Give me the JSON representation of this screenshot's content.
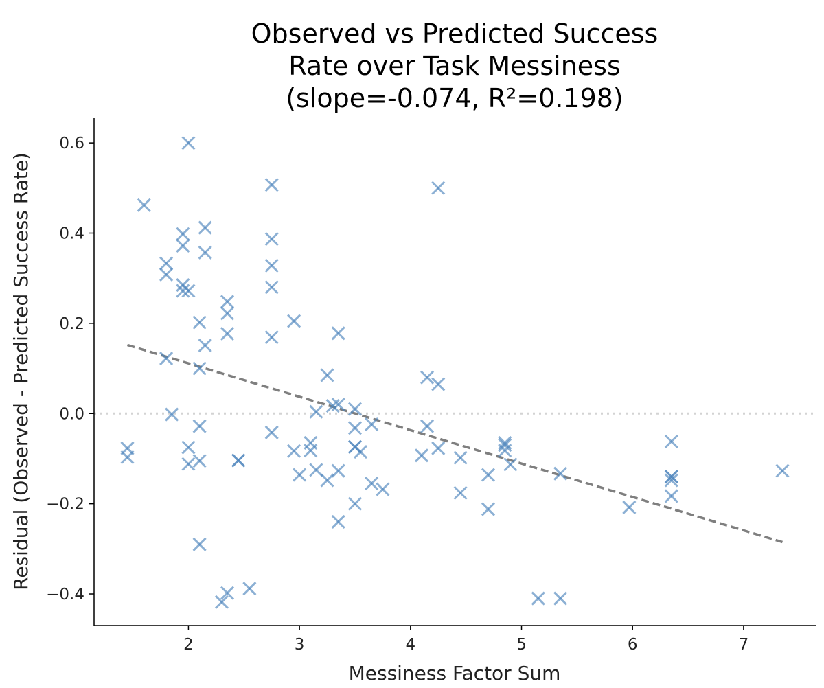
{
  "chart_data": {
    "type": "scatter",
    "title_lines": [
      "Observed vs Predicted Success",
      "Rate over Task Messiness",
      "(slope=-0.074, R²=0.198)"
    ],
    "xlabel": "Messiness Factor Sum",
    "ylabel": "Residual (Observed - Predicted Success Rate)",
    "xlim": [
      1.15,
      7.65
    ],
    "ylim": [
      -0.47,
      0.655
    ],
    "x_ticks": [
      2,
      3,
      4,
      5,
      6,
      7
    ],
    "x_tick_labels": [
      "2",
      "3",
      "4",
      "5",
      "6",
      "7"
    ],
    "y_ticks": [
      -0.4,
      -0.2,
      0.0,
      0.2,
      0.4,
      0.6
    ],
    "y_tick_labels": [
      "−0.4",
      "−0.2",
      "0.0",
      "0.2",
      "0.4",
      "0.6"
    ],
    "grid": false,
    "marker": "x",
    "marker_color": "#4f86bd",
    "trend_line": {
      "x": [
        1.45,
        7.35
      ],
      "y": [
        0.152,
        -0.285
      ],
      "color": "#7f7f7f",
      "style": "dashed"
    },
    "zero_line": {
      "y": 0.0,
      "color": "#d3d3d3",
      "style": "dotted"
    },
    "points": [
      {
        "x": 1.45,
        "y": -0.077
      },
      {
        "x": 1.45,
        "y": -0.097
      },
      {
        "x": 1.6,
        "y": 0.462
      },
      {
        "x": 1.8,
        "y": 0.333
      },
      {
        "x": 1.8,
        "y": 0.308
      },
      {
        "x": 1.8,
        "y": 0.122
      },
      {
        "x": 1.85,
        "y": -0.002
      },
      {
        "x": 1.95,
        "y": 0.398
      },
      {
        "x": 1.95,
        "y": 0.372
      },
      {
        "x": 1.95,
        "y": 0.285
      },
      {
        "x": 1.95,
        "y": 0.272
      },
      {
        "x": 2.0,
        "y": 0.6
      },
      {
        "x": 2.0,
        "y": 0.272
      },
      {
        "x": 2.0,
        "y": -0.075
      },
      {
        "x": 2.0,
        "y": -0.112
      },
      {
        "x": 2.1,
        "y": 0.202
      },
      {
        "x": 2.1,
        "y": 0.1
      },
      {
        "x": 2.1,
        "y": -0.028
      },
      {
        "x": 2.1,
        "y": -0.105
      },
      {
        "x": 2.1,
        "y": -0.29
      },
      {
        "x": 2.15,
        "y": 0.412
      },
      {
        "x": 2.15,
        "y": 0.357
      },
      {
        "x": 2.15,
        "y": 0.151
      },
      {
        "x": 2.3,
        "y": -0.418
      },
      {
        "x": 2.35,
        "y": 0.248
      },
      {
        "x": 2.35,
        "y": 0.222
      },
      {
        "x": 2.35,
        "y": 0.177
      },
      {
        "x": 2.35,
        "y": -0.398
      },
      {
        "x": 2.45,
        "y": -0.104
      },
      {
        "x": 2.45,
        "y": -0.104
      },
      {
        "x": 2.55,
        "y": -0.388
      },
      {
        "x": 2.75,
        "y": 0.507
      },
      {
        "x": 2.75,
        "y": 0.387
      },
      {
        "x": 2.75,
        "y": 0.328
      },
      {
        "x": 2.75,
        "y": 0.28
      },
      {
        "x": 2.75,
        "y": 0.169
      },
      {
        "x": 2.75,
        "y": -0.042
      },
      {
        "x": 2.95,
        "y": 0.205
      },
      {
        "x": 2.95,
        "y": -0.083
      },
      {
        "x": 3.0,
        "y": -0.136
      },
      {
        "x": 3.1,
        "y": -0.065
      },
      {
        "x": 3.1,
        "y": -0.082
      },
      {
        "x": 3.15,
        "y": 0.004
      },
      {
        "x": 3.15,
        "y": -0.125
      },
      {
        "x": 3.25,
        "y": 0.085
      },
      {
        "x": 3.25,
        "y": -0.148
      },
      {
        "x": 3.3,
        "y": 0.017
      },
      {
        "x": 3.35,
        "y": 0.178
      },
      {
        "x": 3.35,
        "y": 0.02
      },
      {
        "x": 3.35,
        "y": -0.127
      },
      {
        "x": 3.35,
        "y": -0.24
      },
      {
        "x": 3.5,
        "y": 0.01
      },
      {
        "x": 3.5,
        "y": -0.032
      },
      {
        "x": 3.5,
        "y": -0.074
      },
      {
        "x": 3.5,
        "y": -0.074
      },
      {
        "x": 3.5,
        "y": -0.2
      },
      {
        "x": 3.55,
        "y": -0.085
      },
      {
        "x": 3.65,
        "y": -0.024
      },
      {
        "x": 3.65,
        "y": -0.155
      },
      {
        "x": 3.75,
        "y": -0.168
      },
      {
        "x": 4.1,
        "y": -0.093
      },
      {
        "x": 4.15,
        "y": 0.08
      },
      {
        "x": 4.15,
        "y": -0.028
      },
      {
        "x": 4.25,
        "y": 0.5
      },
      {
        "x": 4.25,
        "y": 0.065
      },
      {
        "x": 4.25,
        "y": -0.077
      },
      {
        "x": 4.45,
        "y": -0.098
      },
      {
        "x": 4.45,
        "y": -0.176
      },
      {
        "x": 4.7,
        "y": -0.136
      },
      {
        "x": 4.7,
        "y": -0.212
      },
      {
        "x": 4.85,
        "y": -0.065
      },
      {
        "x": 4.85,
        "y": -0.07
      },
      {
        "x": 4.85,
        "y": -0.082
      },
      {
        "x": 4.9,
        "y": -0.113
      },
      {
        "x": 5.15,
        "y": -0.41
      },
      {
        "x": 5.35,
        "y": -0.133
      },
      {
        "x": 5.35,
        "y": -0.41
      },
      {
        "x": 5.97,
        "y": -0.208
      },
      {
        "x": 6.35,
        "y": -0.062
      },
      {
        "x": 6.35,
        "y": -0.14
      },
      {
        "x": 6.35,
        "y": -0.14
      },
      {
        "x": 6.35,
        "y": -0.148
      },
      {
        "x": 6.35,
        "y": -0.183
      },
      {
        "x": 7.35,
        "y": -0.127
      }
    ]
  }
}
